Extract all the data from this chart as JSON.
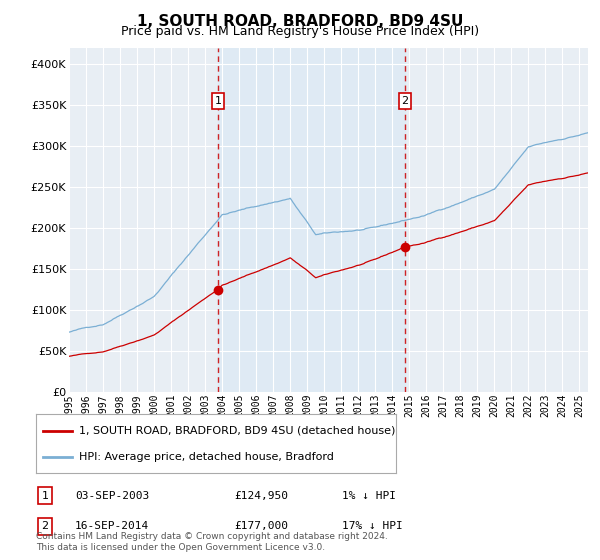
{
  "title": "1, SOUTH ROAD, BRADFORD, BD9 4SU",
  "subtitle": "Price paid vs. HM Land Registry's House Price Index (HPI)",
  "hpi_color": "#7bafd4",
  "hpi_fill_color": "#deeaf4",
  "price_color": "#cc0000",
  "dashed_color": "#cc0000",
  "legend_entry1": "1, SOUTH ROAD, BRADFORD, BD9 4SU (detached house)",
  "legend_entry2": "HPI: Average price, detached house, Bradford",
  "transaction1_label": "1",
  "transaction1_date": "03-SEP-2003",
  "transaction1_price": "£124,950",
  "transaction1_hpi": "1% ↓ HPI",
  "transaction2_label": "2",
  "transaction2_date": "16-SEP-2014",
  "transaction2_price": "£177,000",
  "transaction2_hpi": "17% ↓ HPI",
  "footnote": "Contains HM Land Registry data © Crown copyright and database right 2024.\nThis data is licensed under the Open Government Licence v3.0.",
  "ylim": [
    0,
    420000
  ],
  "yticks": [
    0,
    50000,
    100000,
    150000,
    200000,
    250000,
    300000,
    350000,
    400000
  ],
  "xlim_start": 1995.0,
  "xlim_end": 2025.5,
  "transaction1_x": 2003.75,
  "transaction1_y": 124950,
  "transaction2_x": 2014.75,
  "transaction2_y": 177000,
  "background_color": "#e8eef4"
}
